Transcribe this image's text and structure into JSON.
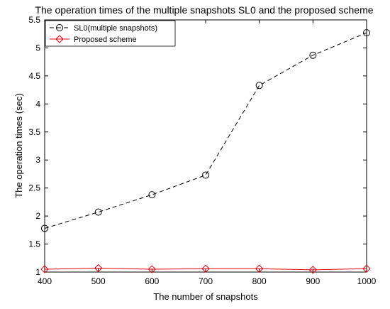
{
  "chart_data": {
    "type": "line",
    "title": "The operation times of the multiple snapshots SL0 and the proposed scheme",
    "xlabel": "The number of snapshots",
    "ylabel": "The operation times (sec)",
    "x": [
      400,
      500,
      600,
      700,
      800,
      900,
      1000
    ],
    "xlim": [
      400,
      1000
    ],
    "ylim": [
      1,
      5.5
    ],
    "xticks": [
      "400",
      "500",
      "600",
      "700",
      "800",
      "900",
      "1000"
    ],
    "yticks": [
      "1",
      "1.5",
      "2",
      "2.5",
      "3",
      "3.5",
      "4",
      "4.5",
      "5",
      "5.5"
    ],
    "grid": false,
    "legend_position": "top-left",
    "series": [
      {
        "name": "SL0(multiple snapshots)",
        "values": [
          1.78,
          2.07,
          2.38,
          2.73,
          4.33,
          4.87,
          5.27
        ],
        "color": "#000000",
        "line_style": "dashed",
        "marker": "circle"
      },
      {
        "name": "Proposed scheme",
        "values": [
          1.05,
          1.07,
          1.05,
          1.06,
          1.06,
          1.04,
          1.06
        ],
        "color": "#e8000b",
        "line_style": "solid",
        "marker": "diamond"
      }
    ]
  }
}
